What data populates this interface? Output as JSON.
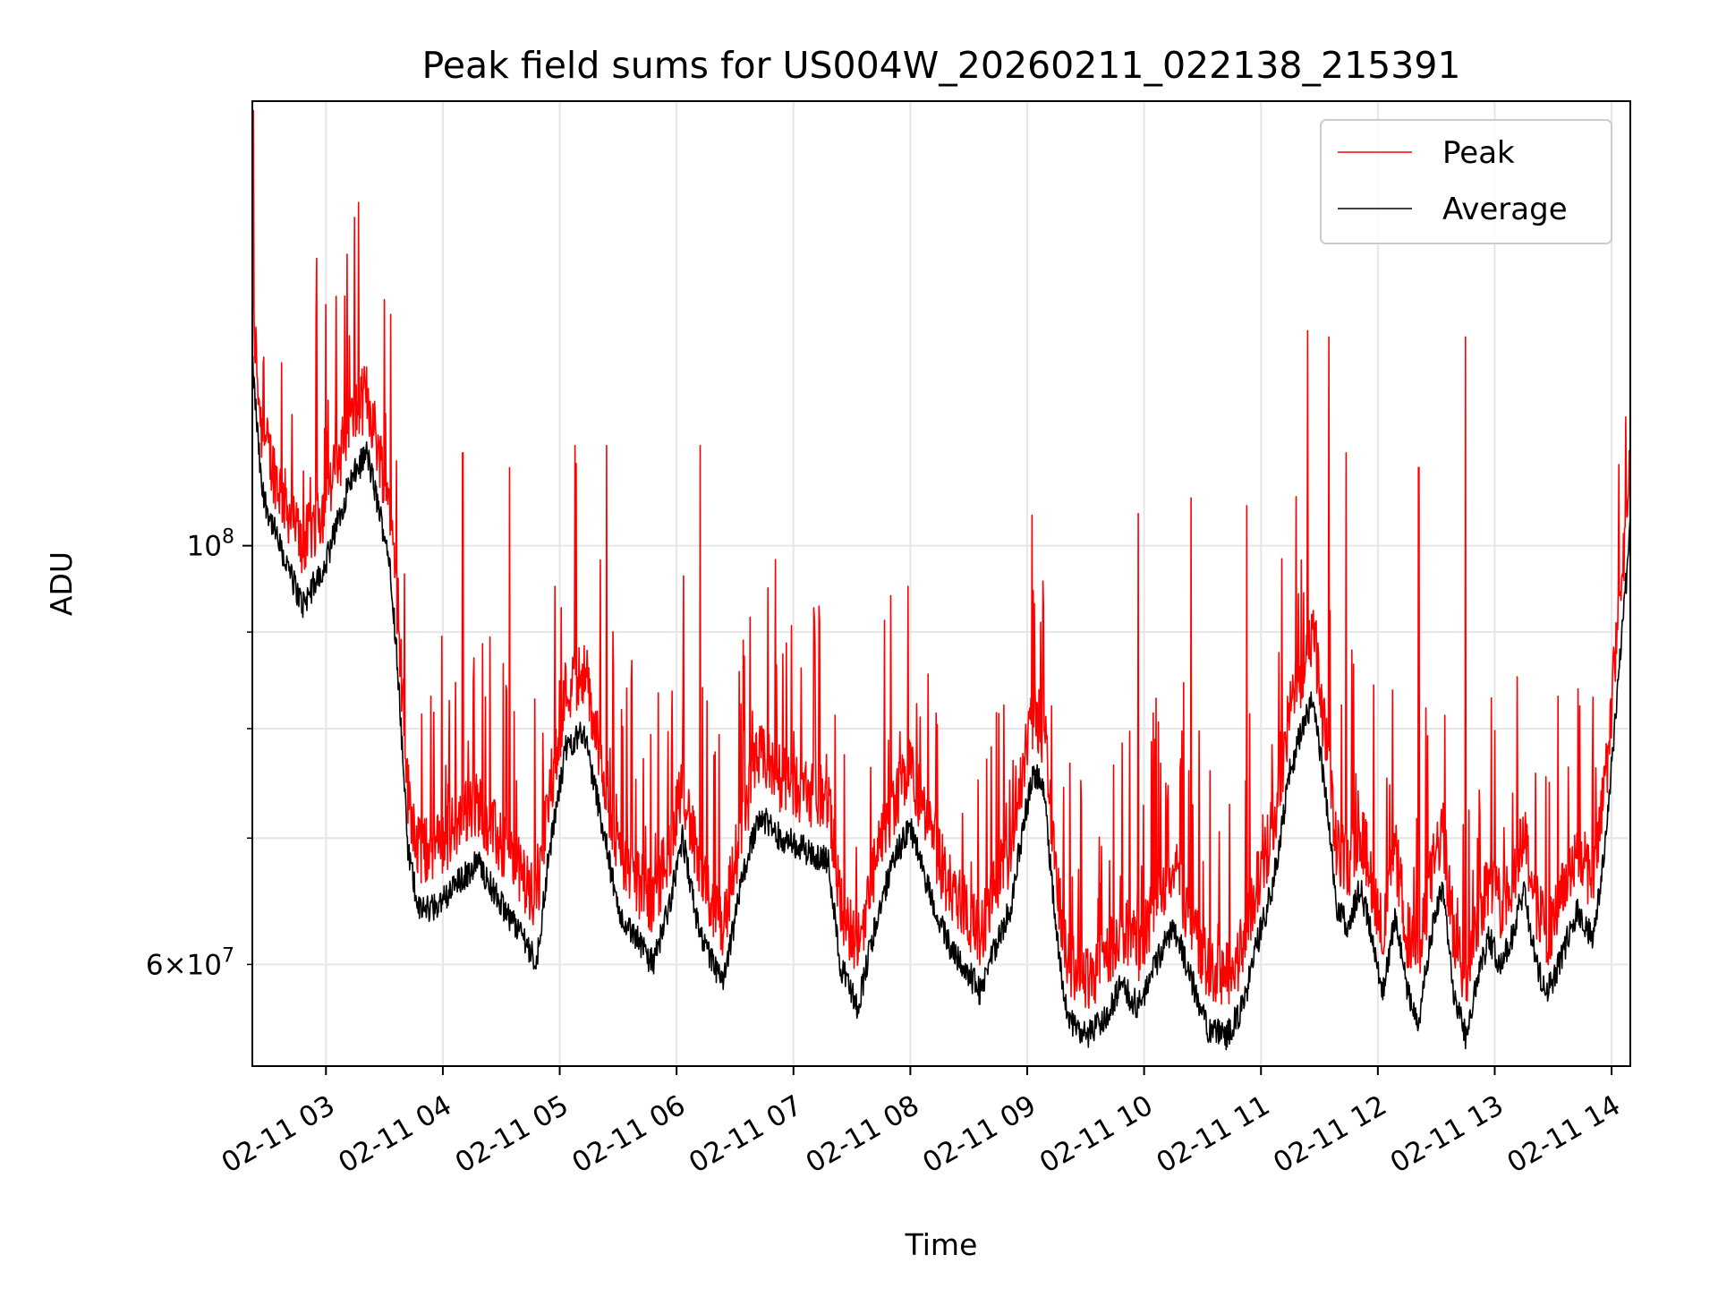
{
  "chart_data": {
    "type": "line",
    "title": "Peak field sums for US004W_20260211_022138_215391",
    "xlabel": "Time",
    "ylabel": "ADU",
    "yscale": "log",
    "ylim": [
      53000000,
      172000000
    ],
    "y_major_ticks": [
      {
        "value": 100000000,
        "base": "10",
        "exp": "8"
      }
    ],
    "y_minor_ticks": [
      {
        "value": 60000000,
        "mant": "6",
        "base": "10",
        "exp": "7"
      },
      {
        "value": 70000000
      },
      {
        "value": 80000000
      },
      {
        "value": 90000000
      }
    ],
    "xlim_hours": [
      2.37,
      14.16
    ],
    "x_ticks": [
      {
        "hour": 3,
        "label": "02-11 03"
      },
      {
        "hour": 4,
        "label": "02-11 04"
      },
      {
        "hour": 5,
        "label": "02-11 05"
      },
      {
        "hour": 6,
        "label": "02-11 06"
      },
      {
        "hour": 7,
        "label": "02-11 07"
      },
      {
        "hour": 8,
        "label": "02-11 08"
      },
      {
        "hour": 9,
        "label": "02-11 09"
      },
      {
        "hour": 10,
        "label": "02-11 10"
      },
      {
        "hour": 11,
        "label": "02-11 11"
      },
      {
        "hour": 12,
        "label": "02-11 12"
      },
      {
        "hour": 13,
        "label": "02-11 13"
      },
      {
        "hour": 14,
        "label": "02-11 14"
      }
    ],
    "grid": true,
    "legend_position": "top-right",
    "series": [
      {
        "name": "Peak",
        "color": "#ff0000",
        "description": "noisy upper envelope with frequent spikes",
        "spike_peaks": [
          {
            "hour": 2.38,
            "value": 170000000
          },
          {
            "hour": 2.62,
            "value": 125000000
          },
          {
            "hour": 2.92,
            "value": 142000000
          },
          {
            "hour": 3.28,
            "value": 152000000
          },
          {
            "hour": 3.5,
            "value": 135000000
          },
          {
            "hour": 4.17,
            "value": 112000000
          },
          {
            "hour": 4.57,
            "value": 110000000
          },
          {
            "hour": 5.13,
            "value": 113000000
          },
          {
            "hour": 5.4,
            "value": 113000000
          },
          {
            "hour": 6.2,
            "value": 113000000
          },
          {
            "hour": 9.95,
            "value": 104000000
          },
          {
            "hour": 10.4,
            "value": 106000000
          },
          {
            "hour": 10.88,
            "value": 105000000
          },
          {
            "hour": 11.4,
            "value": 130000000
          },
          {
            "hour": 11.58,
            "value": 129000000
          },
          {
            "hour": 11.73,
            "value": 112000000
          },
          {
            "hour": 12.35,
            "value": 110000000
          },
          {
            "hour": 12.75,
            "value": 129000000
          },
          {
            "hour": 14.12,
            "value": 117000000
          }
        ]
      },
      {
        "name": "Average",
        "color": "#000000",
        "description": "lower smooth baseline",
        "points": [
          [
            2.37,
            125000000
          ],
          [
            2.45,
            107000000
          ],
          [
            2.6,
            100000000
          ],
          [
            2.8,
            93000000
          ],
          [
            3.0,
            98000000
          ],
          [
            3.2,
            108000000
          ],
          [
            3.35,
            112000000
          ],
          [
            3.55,
            98000000
          ],
          [
            3.62,
            85000000
          ],
          [
            3.7,
            69000000
          ],
          [
            3.8,
            64000000
          ],
          [
            3.95,
            64500000
          ],
          [
            4.1,
            66000000
          ],
          [
            4.3,
            68000000
          ],
          [
            4.5,
            64500000
          ],
          [
            4.7,
            62000000
          ],
          [
            4.8,
            60000000
          ],
          [
            4.9,
            68000000
          ],
          [
            5.05,
            78000000
          ],
          [
            5.2,
            80000000
          ],
          [
            5.35,
            72000000
          ],
          [
            5.5,
            64000000
          ],
          [
            5.65,
            62000000
          ],
          [
            5.8,
            60000000
          ],
          [
            5.95,
            65000000
          ],
          [
            6.05,
            70000000
          ],
          [
            6.2,
            62000000
          ],
          [
            6.4,
            58500000
          ],
          [
            6.55,
            66000000
          ],
          [
            6.7,
            72000000
          ],
          [
            6.9,
            70000000
          ],
          [
            7.1,
            69000000
          ],
          [
            7.3,
            68000000
          ],
          [
            7.4,
            60000000
          ],
          [
            7.55,
            57000000
          ],
          [
            7.7,
            63000000
          ],
          [
            7.85,
            68000000
          ],
          [
            8.0,
            71000000
          ],
          [
            8.15,
            66000000
          ],
          [
            8.3,
            62000000
          ],
          [
            8.45,
            60000000
          ],
          [
            8.6,
            58000000
          ],
          [
            8.75,
            62000000
          ],
          [
            8.85,
            64000000
          ],
          [
            8.95,
            70000000
          ],
          [
            9.05,
            76000000
          ],
          [
            9.15,
            74000000
          ],
          [
            9.25,
            62000000
          ],
          [
            9.35,
            56000000
          ],
          [
            9.5,
            55000000
          ],
          [
            9.65,
            56000000
          ],
          [
            9.8,
            58500000
          ],
          [
            9.95,
            57000000
          ],
          [
            10.1,
            60000000
          ],
          [
            10.25,
            63000000
          ],
          [
            10.4,
            59000000
          ],
          [
            10.55,
            55500000
          ],
          [
            10.7,
            55000000
          ],
          [
            10.85,
            57000000
          ],
          [
            10.95,
            61000000
          ],
          [
            11.1,
            66000000
          ],
          [
            11.25,
            76000000
          ],
          [
            11.35,
            80000000
          ],
          [
            11.45,
            83000000
          ],
          [
            11.55,
            74000000
          ],
          [
            11.65,
            64000000
          ],
          [
            11.75,
            63000000
          ],
          [
            11.85,
            66000000
          ],
          [
            11.95,
            62000000
          ],
          [
            12.05,
            58000000
          ],
          [
            12.15,
            64000000
          ],
          [
            12.25,
            58000000
          ],
          [
            12.35,
            56000000
          ],
          [
            12.45,
            62000000
          ],
          [
            12.55,
            66000000
          ],
          [
            12.65,
            58000000
          ],
          [
            12.75,
            55000000
          ],
          [
            12.85,
            59000000
          ],
          [
            12.95,
            62000000
          ],
          [
            13.05,
            60000000
          ],
          [
            13.15,
            62000000
          ],
          [
            13.25,
            66000000
          ],
          [
            13.35,
            60000000
          ],
          [
            13.45,
            58000000
          ],
          [
            13.55,
            60000000
          ],
          [
            13.7,
            64000000
          ],
          [
            13.85,
            62000000
          ],
          [
            13.95,
            70000000
          ],
          [
            14.05,
            84000000
          ],
          [
            14.16,
            102000000
          ]
        ]
      }
    ]
  }
}
